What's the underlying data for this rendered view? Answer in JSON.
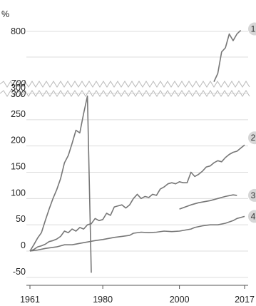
{
  "chart_data": {
    "type": "line",
    "ylabel": "%",
    "y_ticks_lower": [
      -50,
      0,
      50,
      100,
      150,
      200,
      250,
      300
    ],
    "y_ticks_upper": [
      700,
      800
    ],
    "y_break": [
      300,
      700
    ],
    "x_ticks": [
      1961,
      1980,
      2000,
      2017
    ],
    "xlim": [
      1961,
      2017
    ],
    "grid": true,
    "series": [
      {
        "name": "1",
        "color": "#777777",
        "x": [
          1961,
          1962,
          1963,
          1964,
          1965,
          1966,
          1967,
          1968,
          1969,
          1970,
          1971,
          1972,
          1973,
          1974,
          1975,
          1976,
          1977,
          2009,
          2010,
          2011,
          2012,
          2013,
          2014,
          2015,
          2016
        ],
        "values": [
          0,
          12,
          25,
          35,
          58,
          80,
          100,
          117,
          138,
          168,
          182,
          205,
          230,
          225,
          262,
          295,
          330,
          702,
          718,
          760,
          768,
          795,
          782,
          795,
          802
        ]
      },
      {
        "name": "2",
        "color": "#777777",
        "x": [
          1961,
          1962,
          1963,
          1964,
          1965,
          1966,
          1967,
          1968,
          1969,
          1970,
          1971,
          1972,
          1973,
          1974,
          1975,
          1976,
          1977,
          1978,
          1979,
          1980,
          1981,
          1982,
          1983,
          1984,
          1985,
          1986,
          1987,
          1988,
          1989,
          1990,
          1991,
          1992,
          1993,
          1994,
          1995,
          1996,
          1997,
          1998,
          1999,
          2000,
          2001,
          2002,
          2003,
          2004,
          2005,
          2006,
          2007,
          2008,
          2009,
          2010,
          2011,
          2012,
          2013,
          2014,
          2015,
          2016,
          2017
        ],
        "values": [
          0,
          3,
          8,
          10,
          13,
          18,
          20,
          23,
          28,
          38,
          35,
          42,
          38,
          45,
          42,
          50,
          52,
          62,
          58,
          60,
          72,
          68,
          84,
          86,
          88,
          82,
          88,
          100,
          108,
          100,
          104,
          102,
          108,
          106,
          118,
          122,
          128,
          130,
          128,
          132,
          130,
          130,
          150,
          142,
          146,
          152,
          160,
          162,
          168,
          172,
          170,
          178,
          184,
          188,
          190,
          196,
          202
        ]
      },
      {
        "name": "3",
        "color": "#777777",
        "x": [
          1961,
          1965,
          1970,
          1975,
          1980,
          1985,
          1990,
          1995,
          2000,
          2003,
          2005,
          2008,
          2010,
          2012,
          2014,
          2015
        ],
        "values": [
          0,
          8,
          16,
          26,
          34,
          48,
          58,
          70,
          80,
          88,
          92,
          96,
          100,
          104,
          107,
          106
        ]
      },
      {
        "name": "4",
        "color": "#777777",
        "x": [
          1961,
          1963,
          1965,
          1968,
          1970,
          1972,
          1975,
          1978,
          1980,
          1983,
          1985,
          1987,
          1988,
          1990,
          1992,
          1994,
          1996,
          1998,
          2000,
          2003,
          2004,
          2006,
          2008,
          2010,
          2012,
          2014,
          2015,
          2016,
          2017
        ],
        "values": [
          0,
          2,
          5,
          8,
          12,
          12,
          16,
          20,
          22,
          26,
          28,
          30,
          34,
          36,
          35,
          36,
          38,
          37,
          38,
          42,
          45,
          48,
          50,
          50,
          53,
          58,
          62,
          64,
          66
        ]
      }
    ]
  }
}
